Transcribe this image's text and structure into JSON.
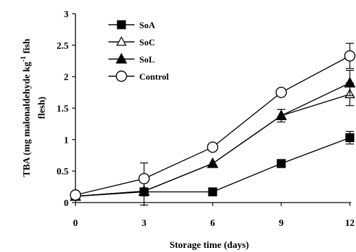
{
  "chart_data": {
    "type": "line",
    "title": "",
    "xlabel": "Storage time (days)",
    "ylabel_line1": "TBA (mg malonaldehyde kg",
    "ylabel_sup": "-1",
    "ylabel_line1_end": " fish",
    "ylabel_line2": "flesh)",
    "x": [
      0,
      3,
      6,
      9,
      12
    ],
    "x_ticks": [
      "0",
      "3",
      "6",
      "9",
      "12"
    ],
    "y_ticks": [
      "0",
      "0.5",
      "1",
      "1.5",
      "2",
      "2.5",
      "3"
    ],
    "xlim": [
      0,
      12
    ],
    "ylim": [
      0,
      3
    ],
    "grid": false,
    "legend_position": "top-left",
    "series": [
      {
        "name": "SoA",
        "marker": "filled-square",
        "values": [
          0.1,
          0.17,
          0.17,
          0.62,
          1.03
        ],
        "errors": [
          0,
          0,
          0,
          0,
          0.1
        ]
      },
      {
        "name": "SoC",
        "marker": "open-triangle",
        "values": [
          0.1,
          0.18,
          0.62,
          1.38,
          1.72
        ],
        "errors": [
          0,
          0.22,
          0,
          0,
          0.18
        ]
      },
      {
        "name": "SoL",
        "marker": "filled-triangle",
        "values": [
          0.1,
          0.18,
          0.62,
          1.38,
          1.9
        ],
        "errors": [
          0,
          0,
          0,
          0.1,
          0.2
        ]
      },
      {
        "name": "Control",
        "marker": "open-circle",
        "values": [
          0.12,
          0.38,
          0.88,
          1.75,
          2.33
        ],
        "errors": [
          0,
          0.25,
          0,
          0,
          0.2
        ]
      }
    ]
  }
}
